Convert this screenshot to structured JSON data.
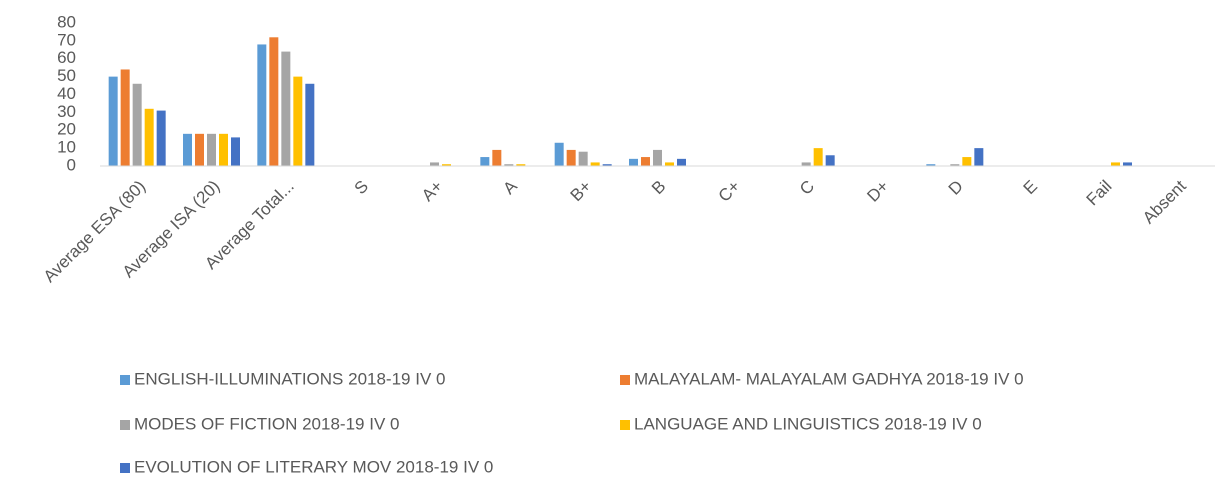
{
  "chart_data": {
    "type": "bar",
    "categories": [
      "Average ESA (80)",
      "Average ISA (20)",
      "Average Total...",
      "S",
      "A+",
      "A",
      "B+",
      "B",
      "C+",
      "C",
      "D+",
      "D",
      "E",
      "Fail",
      "Absent"
    ],
    "series": [
      {
        "name": "ENGLISH-ILLUMINATIONS 2018-19 IV 0",
        "color": "#5b9bd5",
        "values": [
          50,
          18,
          68,
          0,
          0,
          5,
          13,
          4,
          0,
          0,
          0,
          1,
          0,
          0,
          0
        ]
      },
      {
        "name": "MALAYALAM- MALAYALAM GADHYA 2018-19 IV 0",
        "color": "#ed7d31",
        "values": [
          54,
          18,
          72,
          0,
          0,
          9,
          9,
          5,
          0,
          0,
          0,
          0,
          0,
          0,
          0
        ]
      },
      {
        "name": "MODES OF FICTION 2018-19 IV 0",
        "color": "#a5a5a5",
        "values": [
          46,
          18,
          64,
          0,
          2,
          1,
          8,
          9,
          0,
          2,
          0,
          1,
          0,
          0,
          0
        ]
      },
      {
        "name": "LANGUAGE AND LINGUISTICS 2018-19 IV 0",
        "color": "#ffc000",
        "values": [
          32,
          18,
          50,
          0,
          1,
          1,
          2,
          2,
          0,
          10,
          0,
          5,
          0,
          2,
          0
        ]
      },
      {
        "name": "EVOLUTION OF LITERARY MOV 2018-19 IV 0",
        "color": "#4472c4",
        "values": [
          31,
          16,
          46,
          0,
          0,
          0,
          1,
          4,
          0,
          6,
          0,
          10,
          0,
          2,
          0
        ]
      }
    ],
    "ylim": [
      0,
      80
    ],
    "yticks": [
      0,
      10,
      20,
      30,
      40,
      50,
      60,
      70,
      80
    ],
    "grid": false
  }
}
